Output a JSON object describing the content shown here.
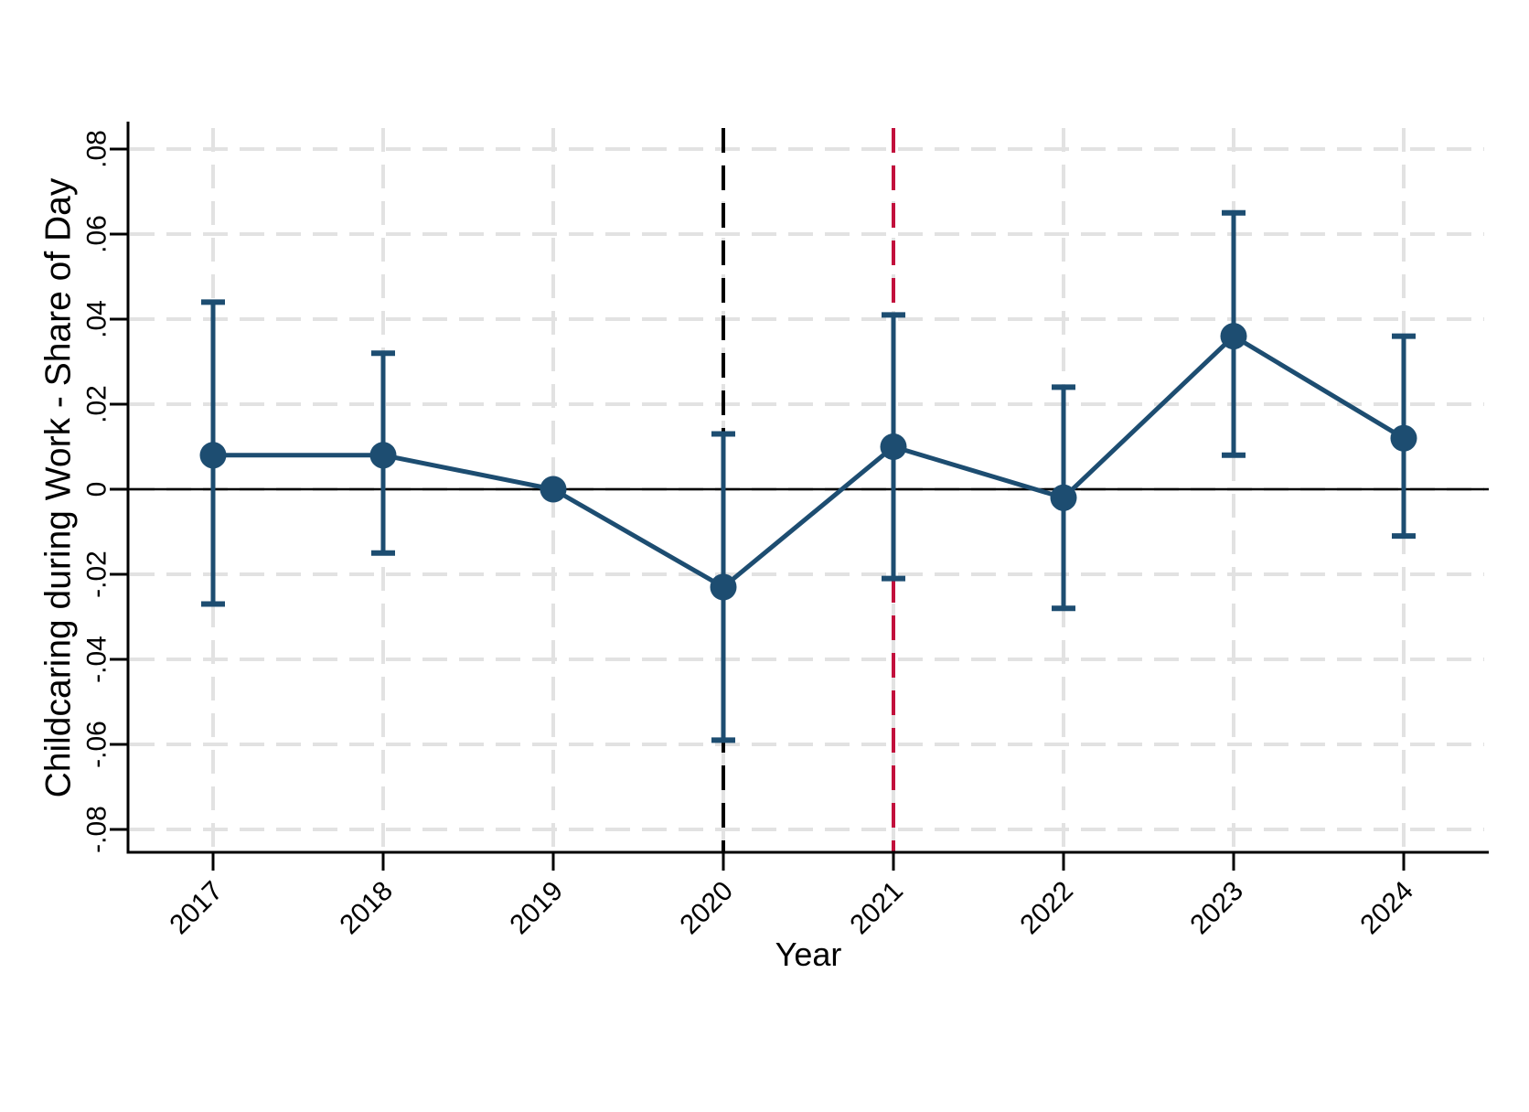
{
  "chart_data": {
    "type": "line",
    "title": "",
    "xlabel": "Year",
    "ylabel": "Childcaring during Work - Share of Day",
    "x": [
      2017,
      2018,
      2019,
      2020,
      2021,
      2022,
      2023,
      2024
    ],
    "x_tick_labels": [
      "2017",
      "2018",
      "2019",
      "2020",
      "2021",
      "2022",
      "2023",
      "2024"
    ],
    "series": [
      {
        "name": "coefficient-estimate",
        "marker": "circle",
        "values": [
          0.008,
          0.008,
          0.0,
          -0.023,
          0.01,
          -0.002,
          0.036,
          0.012
        ],
        "ci_low": [
          -0.027,
          -0.015,
          null,
          -0.059,
          -0.021,
          -0.028,
          0.008,
          -0.011
        ],
        "ci_high": [
          0.044,
          0.032,
          null,
          0.013,
          0.041,
          0.024,
          0.065,
          0.036
        ]
      }
    ],
    "reference_year": 2019,
    "ylim": [
      -0.08,
      0.08
    ],
    "yticks": [
      {
        "value": 0.08,
        "label": ".08"
      },
      {
        "value": 0.06,
        "label": ".06"
      },
      {
        "value": 0.04,
        "label": ".04"
      },
      {
        "value": 0.02,
        "label": ".02"
      },
      {
        "value": 0.0,
        "label": "0"
      },
      {
        "value": -0.02,
        "label": "-.02"
      },
      {
        "value": -0.04,
        "label": "-.04"
      },
      {
        "value": -0.06,
        "label": "-.06"
      },
      {
        "value": -0.08,
        "label": "-.08"
      }
    ],
    "hline": 0,
    "vlines": [
      {
        "x": 2020,
        "color": "#000000",
        "style": "dashed"
      },
      {
        "x": 2021,
        "color": "#c2103c",
        "style": "dashed"
      }
    ],
    "grid": {
      "show": true,
      "style": "dashed",
      "color": "#e2e2e2"
    },
    "legend": "none",
    "x_tick_angle": 45,
    "y_tick_angle": 90,
    "colors": {
      "series": "#1d4d71",
      "axis": "#000000",
      "zero_line": "#000000",
      "background": "#ffffff"
    }
  }
}
